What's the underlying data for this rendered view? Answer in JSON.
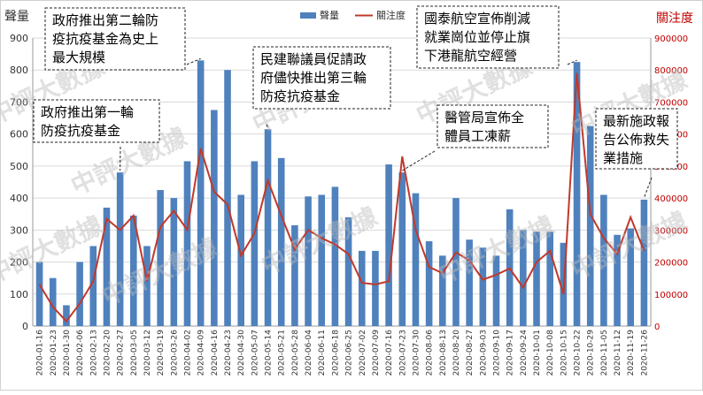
{
  "chart_data": {
    "type": "bar",
    "left_axis_title": "聲量",
    "right_axis_title": "關注度",
    "legend": [
      {
        "label": "聲量",
        "color": "#4f81bd",
        "kind": "bar"
      },
      {
        "label": "關注度",
        "color": "#c0392b",
        "kind": "line"
      }
    ],
    "watermark": "中評大數據",
    "categories": [
      "2020-01-16",
      "2020-01-23",
      "2020-01-30",
      "2020-02-06",
      "2020-02-13",
      "2020-02-20",
      "2020-02-27",
      "2020-03-05",
      "2020-03-12",
      "2020-03-19",
      "2020-03-26",
      "2020-04-02",
      "2020-04-09",
      "2020-04-16",
      "2020-04-23",
      "2020-04-30",
      "2020-05-07",
      "2020-05-14",
      "2020-05-21",
      "2020-05-28",
      "2020-06-04",
      "2020-06-11",
      "2020-06-18",
      "2020-06-25",
      "2020-07-02",
      "2020-07-09",
      "2020-07-16",
      "2020-07-23",
      "2020-07-30",
      "2020-08-06",
      "2020-08-13",
      "2020-08-20",
      "2020-08-27",
      "2020-09-03",
      "2020-09-10",
      "2020-09-17",
      "2020-09-24",
      "2020-10-01",
      "2020-10-08",
      "2020-10-15",
      "2020-10-22",
      "2020-10-29",
      "2020-11-05",
      "2020-11-12",
      "2020-11-19",
      "2020-11-26"
    ],
    "x_tick_labels": [
      "2020-01-16",
      "2020-01-23",
      "2020-01-30",
      "2020-02-06",
      "2020-02-13",
      "2020-02-20",
      "2020-02-27",
      "2020-03-05",
      "2020-03-12",
      "2020-03-19",
      "2020-03-26",
      "2020-04-02",
      "2020-04-09",
      "2020-04-16",
      "2020-04-23",
      "2020-04-30",
      "2020-05-07",
      "2020-05-14",
      "2020-05-21",
      "2020-05-28",
      "2020-06-04",
      "2020-06-11",
      "2020-06-18",
      "2020-06-25",
      "2020-07-02",
      "2020-07-09",
      "2020-07-16",
      "2020-07-23",
      "2020-07-30",
      "2020-08-06",
      "2020-08-13",
      "2020-08-20",
      "2020-08-27",
      "2020-09-03",
      "2020-09-10",
      "2020-09-17",
      "2020-09-24",
      "2020-10-01",
      "2020-10-08",
      "2020-10-15",
      "2020-10-22",
      "2020-10-29",
      "2020-11-05",
      "2020-11-12",
      "2020-11-19",
      "2020-11-26"
    ],
    "series": [
      {
        "name": "聲量",
        "axis": "left",
        "type": "bar",
        "color": "#4f81bd",
        "values": [
          200,
          150,
          65,
          200,
          250,
          370,
          480,
          345,
          250,
          425,
          400,
          515,
          830,
          675,
          800,
          410,
          515,
          615,
          525,
          315,
          405,
          410,
          435,
          340,
          235,
          235,
          505,
          480,
          415,
          265,
          220,
          400,
          270,
          245,
          220,
          365,
          300,
          295,
          295,
          260,
          825,
          625,
          410,
          285,
          305,
          395
        ]
      },
      {
        "name": "關注度",
        "axis": "right",
        "type": "line",
        "color": "#c0392b",
        "values": [
          130000,
          60000,
          15000,
          70000,
          140000,
          335000,
          300000,
          345000,
          140000,
          310000,
          360000,
          300000,
          555000,
          420000,
          380000,
          220000,
          290000,
          455000,
          345000,
          240000,
          300000,
          275000,
          255000,
          225000,
          135000,
          130000,
          140000,
          530000,
          300000,
          185000,
          165000,
          230000,
          205000,
          145000,
          160000,
          180000,
          120000,
          200000,
          235000,
          100000,
          790000,
          350000,
          275000,
          225000,
          340000,
          235000
        ]
      }
    ],
    "left_axis": {
      "min": 0,
      "max": 900,
      "ticks": [
        "0",
        "100",
        "200",
        "300",
        "400",
        "500",
        "600",
        "700",
        "800",
        "900"
      ]
    },
    "right_axis": {
      "min": 0,
      "max": 900000,
      "ticks": [
        "0",
        "100000",
        "200000",
        "300000",
        "400000",
        "500000",
        "600000",
        "700000",
        "800000",
        "900000"
      ]
    },
    "grid": true,
    "legend_position": "top-center",
    "annotations": [
      {
        "lines": [
          "政府推出第二輪防",
          "疫抗疫基金為史上",
          "最大規模"
        ],
        "category_index": 12
      },
      {
        "lines": [
          "政府推出第一輪",
          "防疫抗疫基金"
        ],
        "category_index": 6
      },
      {
        "lines": [
          "民建聯議員促請政",
          "府儘快推出第三輪",
          "防疫抗疫基金"
        ],
        "category_index": 17
      },
      {
        "lines": [
          "國泰航空宣佈削減",
          "就業崗位並停止旗",
          "下港龍航空經營"
        ],
        "category_index": 40
      },
      {
        "lines": [
          "醫管局宣佈全",
          "體員工凍薪"
        ],
        "category_index": 27
      },
      {
        "lines": [
          "最新施政報",
          "告公佈救失",
          "業措施"
        ],
        "category_index": 45
      }
    ]
  }
}
